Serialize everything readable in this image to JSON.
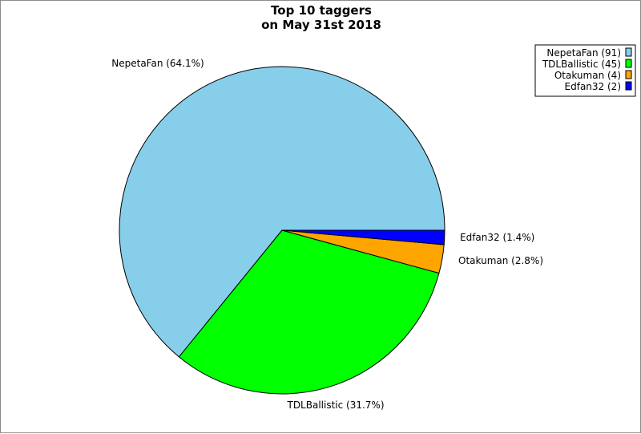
{
  "chart_data": {
    "type": "pie",
    "title": [
      "Top 10 taggers",
      "on May 31st 2018"
    ],
    "slices": [
      {
        "name": "NepetaFan",
        "value": 91,
        "label": "NepetaFan (64.1%)",
        "legend": "NepetaFan (91)",
        "color": "#87ceeb"
      },
      {
        "name": "TDLBallistic",
        "value": 45,
        "label": "TDLBallistic (31.7%)",
        "legend": "TDLBallistic (45)",
        "color": "#00ff00"
      },
      {
        "name": "Otakuman",
        "value": 4,
        "label": "Otakuman (2.8%)",
        "legend": "Otakuman (4)",
        "color": "#ffa500"
      },
      {
        "name": "Edfan32",
        "value": 2,
        "label": "Edfan32 (1.4%)",
        "legend": "Edfan32 (2)",
        "color": "#0000ff"
      }
    ],
    "legend_position": "top-right",
    "start_angle_deg": 0,
    "direction": "counterclockwise"
  }
}
